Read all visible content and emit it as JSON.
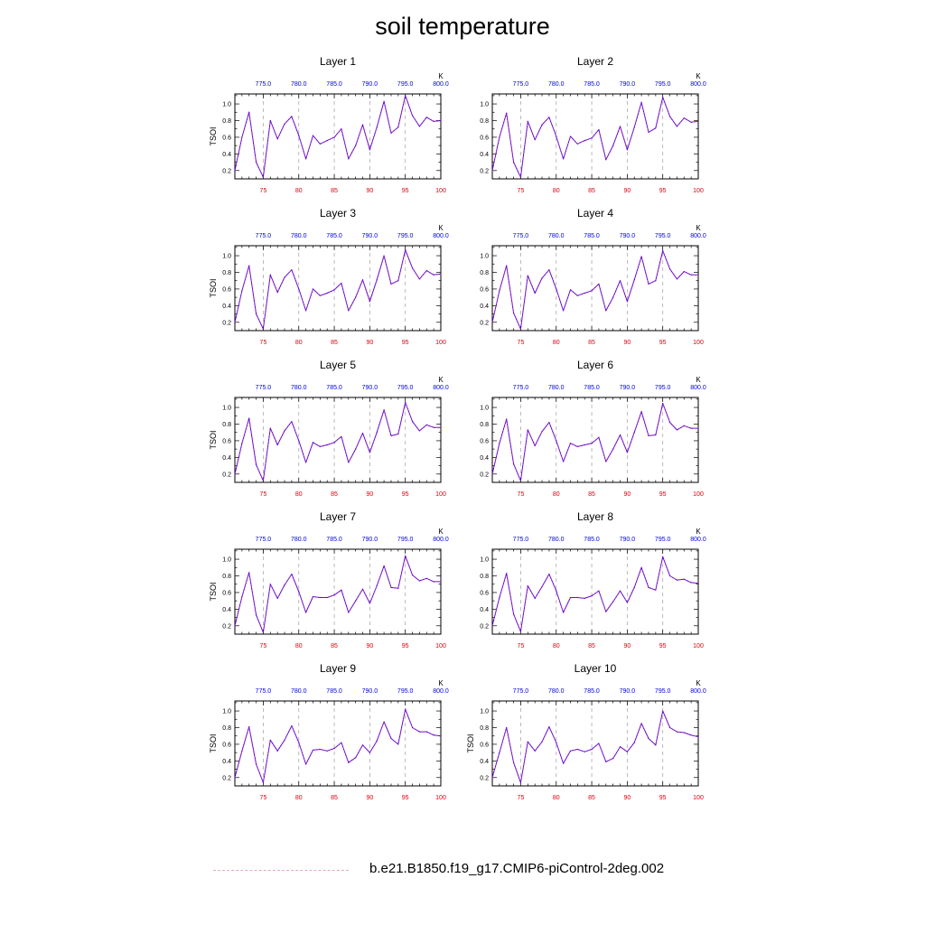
{
  "page": {
    "title": "soil temperature"
  },
  "legend": {
    "label": "b.e21.B1850.f19_g17.CMIP6-piControl-2deg.002",
    "line_color": "#e7a6c8"
  },
  "colors": {
    "line": "#5b00c8",
    "bottom_ticks": "#e0000b",
    "top_ticks": "#0000e0",
    "grid": "#aaaaaa"
  },
  "chart_data": [
    {
      "type": "line",
      "title": "Layer 1",
      "ylabel": "TSOI",
      "top_axis_unit": "K",
      "xlim": [
        71,
        100
      ],
      "ylim": [
        0.1,
        1.12
      ],
      "x_ticks": [
        75,
        80,
        85,
        90,
        95,
        100
      ],
      "top_ticks": [
        "775.0",
        "780.0",
        "785.0",
        "790.0",
        "795.0",
        "800.0"
      ],
      "y_ticks": [
        0.2,
        0.4,
        0.6,
        0.8,
        1.0
      ],
      "y_tick_labels": [
        "0.2",
        "0.4",
        "0.6",
        "0.8",
        "1.0"
      ],
      "x": [
        71,
        72,
        73,
        74,
        75,
        76,
        77,
        78,
        79,
        80,
        81,
        82,
        83,
        84,
        85,
        86,
        87,
        88,
        89,
        90,
        91,
        92,
        93,
        94,
        95,
        96,
        97,
        98,
        99,
        100
      ],
      "series": [
        {
          "values": [
            0.2,
            0.6,
            0.9,
            0.3,
            0.12,
            0.8,
            0.58,
            0.76,
            0.85,
            0.62,
            0.34,
            0.62,
            0.52,
            0.56,
            0.6,
            0.7,
            0.34,
            0.5,
            0.75,
            0.45,
            0.72,
            1.03,
            0.65,
            0.72,
            1.1,
            0.86,
            0.73,
            0.84,
            0.79,
            0.8
          ]
        }
      ]
    },
    {
      "type": "line",
      "title": "Layer 2",
      "ylabel": "",
      "top_axis_unit": "K",
      "xlim": [
        71,
        100
      ],
      "ylim": [
        0.1,
        1.12
      ],
      "x_ticks": [
        75,
        80,
        85,
        90,
        95,
        100
      ],
      "top_ticks": [
        "775.0",
        "780.0",
        "785.0",
        "790.0",
        "795.0",
        "800.0"
      ],
      "y_ticks": [
        0.2,
        0.4,
        0.6,
        0.8,
        1.0
      ],
      "y_tick_labels": [
        "0.2",
        "0.4",
        "0.6",
        "0.8",
        "1.0"
      ],
      "x": [
        71,
        72,
        73,
        74,
        75,
        76,
        77,
        78,
        79,
        80,
        81,
        82,
        83,
        84,
        85,
        86,
        87,
        88,
        89,
        90,
        91,
        92,
        93,
        94,
        95,
        96,
        97,
        98,
        99,
        100
      ],
      "series": [
        {
          "values": [
            0.2,
            0.6,
            0.89,
            0.3,
            0.12,
            0.79,
            0.57,
            0.75,
            0.84,
            0.61,
            0.34,
            0.61,
            0.52,
            0.56,
            0.59,
            0.69,
            0.33,
            0.5,
            0.73,
            0.45,
            0.72,
            1.02,
            0.66,
            0.71,
            1.08,
            0.85,
            0.73,
            0.83,
            0.78,
            0.79
          ]
        }
      ]
    },
    {
      "type": "line",
      "title": "Layer 3",
      "ylabel": "TSOI",
      "top_axis_unit": "K",
      "xlim": [
        71,
        100
      ],
      "ylim": [
        0.1,
        1.12
      ],
      "x_ticks": [
        75,
        80,
        85,
        90,
        95,
        100
      ],
      "top_ticks": [
        "775.0",
        "780.0",
        "785.0",
        "790.0",
        "795.0",
        "800.0"
      ],
      "y_ticks": [
        0.2,
        0.4,
        0.6,
        0.8,
        1.0
      ],
      "y_tick_labels": [
        "0.2",
        "0.4",
        "0.6",
        "0.8",
        "1.0"
      ],
      "x": [
        71,
        72,
        73,
        74,
        75,
        76,
        77,
        78,
        79,
        80,
        81,
        82,
        83,
        84,
        85,
        86,
        87,
        88,
        89,
        90,
        91,
        92,
        93,
        94,
        95,
        96,
        97,
        98,
        99,
        100
      ],
      "series": [
        {
          "values": [
            0.2,
            0.58,
            0.88,
            0.3,
            0.12,
            0.77,
            0.56,
            0.74,
            0.83,
            0.6,
            0.34,
            0.6,
            0.52,
            0.55,
            0.59,
            0.67,
            0.34,
            0.5,
            0.71,
            0.45,
            0.71,
            1.0,
            0.66,
            0.7,
            1.07,
            0.85,
            0.72,
            0.82,
            0.77,
            0.78
          ]
        }
      ]
    },
    {
      "type": "line",
      "title": "Layer 4",
      "ylabel": "",
      "top_axis_unit": "K",
      "xlim": [
        71,
        100
      ],
      "ylim": [
        0.1,
        1.12
      ],
      "x_ticks": [
        75,
        80,
        85,
        90,
        95,
        100
      ],
      "top_ticks": [
        "775.0",
        "780.0",
        "785.0",
        "790.0",
        "795.0",
        "800.0"
      ],
      "y_ticks": [
        0.2,
        0.4,
        0.6,
        0.8,
        1.0
      ],
      "y_tick_labels": [
        "0.2",
        "0.4",
        "0.6",
        "0.8",
        "1.0"
      ],
      "x": [
        71,
        72,
        73,
        74,
        75,
        76,
        77,
        78,
        79,
        80,
        81,
        82,
        83,
        84,
        85,
        86,
        87,
        88,
        89,
        90,
        91,
        92,
        93,
        94,
        95,
        96,
        97,
        98,
        99,
        100
      ],
      "series": [
        {
          "values": [
            0.2,
            0.58,
            0.88,
            0.31,
            0.12,
            0.76,
            0.55,
            0.73,
            0.83,
            0.6,
            0.34,
            0.59,
            0.52,
            0.55,
            0.58,
            0.66,
            0.34,
            0.5,
            0.7,
            0.45,
            0.71,
            0.99,
            0.66,
            0.7,
            1.06,
            0.84,
            0.72,
            0.81,
            0.77,
            0.77
          ]
        }
      ]
    },
    {
      "type": "line",
      "title": "Layer 5",
      "ylabel": "TSOI",
      "top_axis_unit": "K",
      "xlim": [
        71,
        100
      ],
      "ylim": [
        0.1,
        1.12
      ],
      "x_ticks": [
        75,
        80,
        85,
        90,
        95,
        100
      ],
      "top_ticks": [
        "775.0",
        "780.0",
        "785.0",
        "790.0",
        "795.0",
        "800.0"
      ],
      "y_ticks": [
        0.2,
        0.4,
        0.6,
        0.8,
        1.0
      ],
      "y_tick_labels": [
        "0.2",
        "0.4",
        "0.6",
        "0.8",
        "1.0"
      ],
      "x": [
        71,
        72,
        73,
        74,
        75,
        76,
        77,
        78,
        79,
        80,
        81,
        82,
        83,
        84,
        85,
        86,
        87,
        88,
        89,
        90,
        91,
        92,
        93,
        94,
        95,
        96,
        97,
        98,
        99,
        100
      ],
      "series": [
        {
          "values": [
            0.2,
            0.57,
            0.87,
            0.31,
            0.12,
            0.75,
            0.55,
            0.72,
            0.83,
            0.6,
            0.34,
            0.58,
            0.53,
            0.55,
            0.58,
            0.65,
            0.34,
            0.5,
            0.69,
            0.46,
            0.7,
            0.97,
            0.66,
            0.68,
            1.06,
            0.83,
            0.72,
            0.79,
            0.76,
            0.76
          ]
        }
      ]
    },
    {
      "type": "line",
      "title": "Layer 6",
      "ylabel": "",
      "top_axis_unit": "K",
      "xlim": [
        71,
        100
      ],
      "ylim": [
        0.1,
        1.12
      ],
      "x_ticks": [
        75,
        80,
        85,
        90,
        95,
        100
      ],
      "top_ticks": [
        "775.0",
        "780.0",
        "785.0",
        "790.0",
        "795.0",
        "800.0"
      ],
      "y_ticks": [
        0.2,
        0.4,
        0.6,
        0.8,
        1.0
      ],
      "y_tick_labels": [
        "0.2",
        "0.4",
        "0.6",
        "0.8",
        "1.0"
      ],
      "x": [
        71,
        72,
        73,
        74,
        75,
        76,
        77,
        78,
        79,
        80,
        81,
        82,
        83,
        84,
        85,
        86,
        87,
        88,
        89,
        90,
        91,
        92,
        93,
        94,
        95,
        96,
        97,
        98,
        99,
        100
      ],
      "series": [
        {
          "values": [
            0.2,
            0.57,
            0.86,
            0.32,
            0.12,
            0.73,
            0.54,
            0.71,
            0.82,
            0.6,
            0.35,
            0.57,
            0.53,
            0.55,
            0.57,
            0.64,
            0.35,
            0.5,
            0.67,
            0.46,
            0.7,
            0.95,
            0.66,
            0.67,
            1.05,
            0.82,
            0.73,
            0.78,
            0.75,
            0.75
          ]
        }
      ]
    },
    {
      "type": "line",
      "title": "Layer 7",
      "ylabel": "TSOI",
      "top_axis_unit": "K",
      "xlim": [
        71,
        100
      ],
      "ylim": [
        0.1,
        1.12
      ],
      "x_ticks": [
        75,
        80,
        85,
        90,
        95,
        100
      ],
      "top_ticks": [
        "775.0",
        "780.0",
        "785.0",
        "790.0",
        "795.0",
        "800.0"
      ],
      "y_ticks": [
        0.2,
        0.4,
        0.6,
        0.8,
        1.0
      ],
      "y_tick_labels": [
        "0.2",
        "0.4",
        "0.6",
        "0.8",
        "1.0"
      ],
      "x": [
        71,
        72,
        73,
        74,
        75,
        76,
        77,
        78,
        79,
        80,
        81,
        82,
        83,
        84,
        85,
        86,
        87,
        88,
        89,
        90,
        91,
        92,
        93,
        94,
        95,
        96,
        97,
        98,
        99,
        100
      ],
      "series": [
        {
          "values": [
            0.2,
            0.55,
            0.84,
            0.33,
            0.12,
            0.7,
            0.53,
            0.69,
            0.82,
            0.61,
            0.36,
            0.55,
            0.54,
            0.54,
            0.57,
            0.63,
            0.36,
            0.5,
            0.64,
            0.47,
            0.68,
            0.92,
            0.66,
            0.65,
            1.04,
            0.81,
            0.74,
            0.77,
            0.73,
            0.73
          ]
        }
      ]
    },
    {
      "type": "line",
      "title": "Layer 8",
      "ylabel": "",
      "top_axis_unit": "K",
      "xlim": [
        71,
        100
      ],
      "ylim": [
        0.1,
        1.12
      ],
      "x_ticks": [
        75,
        80,
        85,
        90,
        95,
        100
      ],
      "top_ticks": [
        "775.0",
        "780.0",
        "785.0",
        "790.0",
        "795.0",
        "800.0"
      ],
      "y_ticks": [
        0.2,
        0.4,
        0.6,
        0.8,
        1.0
      ],
      "y_tick_labels": [
        "0.2",
        "0.4",
        "0.6",
        "0.8",
        "1.0"
      ],
      "x": [
        71,
        72,
        73,
        74,
        75,
        76,
        77,
        78,
        79,
        80,
        81,
        82,
        83,
        84,
        85,
        86,
        87,
        88,
        89,
        90,
        91,
        92,
        93,
        94,
        95,
        96,
        97,
        98,
        99,
        100
      ],
      "series": [
        {
          "values": [
            0.2,
            0.54,
            0.83,
            0.34,
            0.13,
            0.68,
            0.53,
            0.67,
            0.82,
            0.62,
            0.36,
            0.54,
            0.54,
            0.53,
            0.56,
            0.62,
            0.37,
            0.49,
            0.62,
            0.48,
            0.66,
            0.9,
            0.66,
            0.63,
            1.03,
            0.8,
            0.75,
            0.76,
            0.72,
            0.71
          ]
        }
      ]
    },
    {
      "type": "line",
      "title": "Layer 9",
      "ylabel": "TSOI",
      "top_axis_unit": "K",
      "xlim": [
        71,
        100
      ],
      "ylim": [
        0.1,
        1.12
      ],
      "x_ticks": [
        75,
        80,
        85,
        90,
        95,
        100
      ],
      "top_ticks": [
        "775.0",
        "780.0",
        "785.0",
        "790.0",
        "795.0",
        "800.0"
      ],
      "y_ticks": [
        0.2,
        0.4,
        0.6,
        0.8,
        1.0
      ],
      "y_tick_labels": [
        "0.2",
        "0.4",
        "0.6",
        "0.8",
        "1.0"
      ],
      "x": [
        71,
        72,
        73,
        74,
        75,
        76,
        77,
        78,
        79,
        80,
        81,
        82,
        83,
        84,
        85,
        86,
        87,
        88,
        89,
        90,
        91,
        92,
        93,
        94,
        95,
        96,
        97,
        98,
        99,
        100
      ],
      "series": [
        {
          "values": [
            0.2,
            0.52,
            0.81,
            0.36,
            0.14,
            0.65,
            0.52,
            0.65,
            0.82,
            0.62,
            0.36,
            0.53,
            0.54,
            0.52,
            0.55,
            0.62,
            0.38,
            0.44,
            0.59,
            0.5,
            0.64,
            0.87,
            0.67,
            0.6,
            1.02,
            0.8,
            0.75,
            0.75,
            0.71,
            0.7
          ]
        }
      ]
    },
    {
      "type": "line",
      "title": "Layer 10",
      "ylabel": "TSOI",
      "top_axis_unit": "K",
      "xlim": [
        71,
        100
      ],
      "ylim": [
        0.1,
        1.12
      ],
      "x_ticks": [
        75,
        80,
        85,
        90,
        95,
        100
      ],
      "top_ticks": [
        "775.0",
        "780.0",
        "785.0",
        "790.0",
        "795.0",
        "800.0"
      ],
      "y_ticks": [
        0.2,
        0.4,
        0.6,
        0.8,
        1.0
      ],
      "y_tick_labels": [
        "0.2",
        "0.4",
        "0.6",
        "0.8",
        "1.0"
      ],
      "x": [
        71,
        72,
        73,
        74,
        75,
        76,
        77,
        78,
        79,
        80,
        81,
        82,
        83,
        84,
        85,
        86,
        87,
        88,
        89,
        90,
        91,
        92,
        93,
        94,
        95,
        96,
        97,
        98,
        99,
        100
      ],
      "series": [
        {
          "values": [
            0.2,
            0.5,
            0.8,
            0.38,
            0.14,
            0.63,
            0.52,
            0.63,
            0.81,
            0.62,
            0.37,
            0.52,
            0.54,
            0.51,
            0.54,
            0.61,
            0.39,
            0.43,
            0.57,
            0.51,
            0.62,
            0.85,
            0.67,
            0.59,
            1.0,
            0.8,
            0.75,
            0.74,
            0.71,
            0.69
          ]
        }
      ]
    }
  ]
}
